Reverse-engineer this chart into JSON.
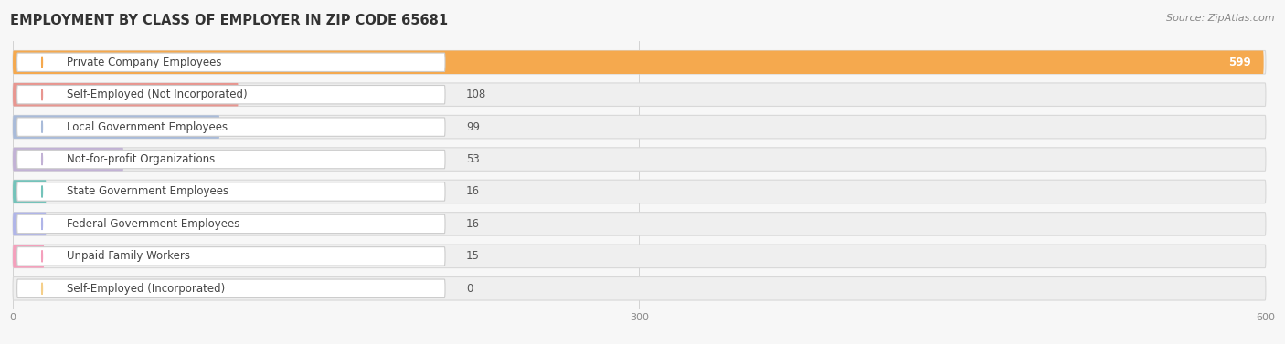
{
  "title": "EMPLOYMENT BY CLASS OF EMPLOYER IN ZIP CODE 65681",
  "source": "Source: ZipAtlas.com",
  "categories": [
    "Private Company Employees",
    "Self-Employed (Not Incorporated)",
    "Local Government Employees",
    "Not-for-profit Organizations",
    "State Government Employees",
    "Federal Government Employees",
    "Unpaid Family Workers",
    "Self-Employed (Incorporated)"
  ],
  "values": [
    599,
    108,
    99,
    53,
    16,
    16,
    15,
    0
  ],
  "bar_colors": [
    "#F5A94E",
    "#E89690",
    "#A9BBD9",
    "#C2B2D5",
    "#74C3BA",
    "#B0B5E8",
    "#F4A0BC",
    "#F5CF8A"
  ],
  "value_inside": [
    true,
    false,
    false,
    false,
    false,
    false,
    false,
    false
  ],
  "xlim_max": 600,
  "xticks": [
    0,
    300,
    600
  ],
  "bg_color": "#f7f7f7",
  "row_bg_color": "#ececec",
  "title_fontsize": 10.5,
  "source_fontsize": 8,
  "label_fontsize": 8.5,
  "value_fontsize": 8.5
}
